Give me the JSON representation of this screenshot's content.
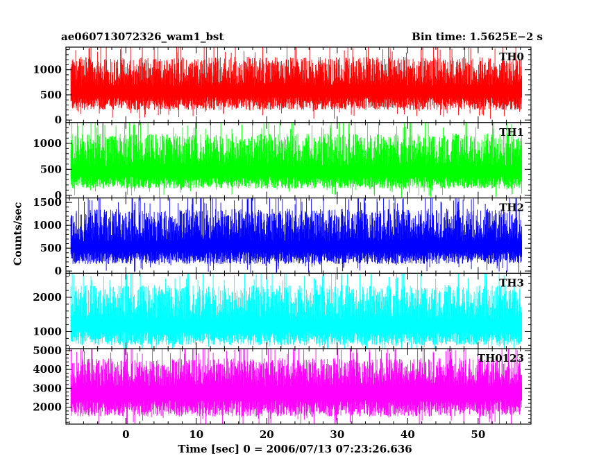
{
  "chart_data": {
    "type": "line",
    "title": "ae060713072326_wam1_bst",
    "bin_time_label": "Bin time: 1.5625E−2 s",
    "xlabel": "Time [sec] 0 = 2006/07/13 07:23:26.636",
    "ylabel": "Counts/sec",
    "xlim": [
      -8.5,
      57.5
    ],
    "data_range_x": [
      -7.8,
      56.2
    ],
    "x_ticks": [
      0,
      10,
      20,
      30,
      40,
      50
    ],
    "grid": false,
    "panels": [
      {
        "name": "TH0",
        "color": "#ff0000",
        "ylim": [
          -50,
          1450
        ],
        "y_ticks": [
          0,
          500,
          1000
        ],
        "baseline": 200,
        "mean": 680,
        "peak": 1450
      },
      {
        "name": "TH1",
        "color": "#00ff00",
        "ylim": [
          -50,
          1400
        ],
        "y_ticks": [
          0,
          500,
          1000
        ],
        "baseline": 130,
        "mean": 560,
        "peak": 1400
      },
      {
        "name": "TH2",
        "color": "#0000ff",
        "ylim": [
          -50,
          1600
        ],
        "y_ticks": [
          0,
          500,
          1000,
          1500
        ],
        "baseline": 150,
        "mean": 650,
        "peak": 1600
      },
      {
        "name": "TH3",
        "color": "#00ffff",
        "ylim": [
          500,
          2700
        ],
        "y_ticks": [
          1000,
          2000
        ],
        "baseline": 600,
        "mean": 1350,
        "peak": 2700
      },
      {
        "name": "TH0123",
        "color": "#ff00ff",
        "ylim": [
          1100,
          5100
        ],
        "y_ticks": [
          2000,
          3000,
          4000,
          5000
        ],
        "baseline": 1500,
        "mean": 3100,
        "peak": 5100
      }
    ]
  }
}
